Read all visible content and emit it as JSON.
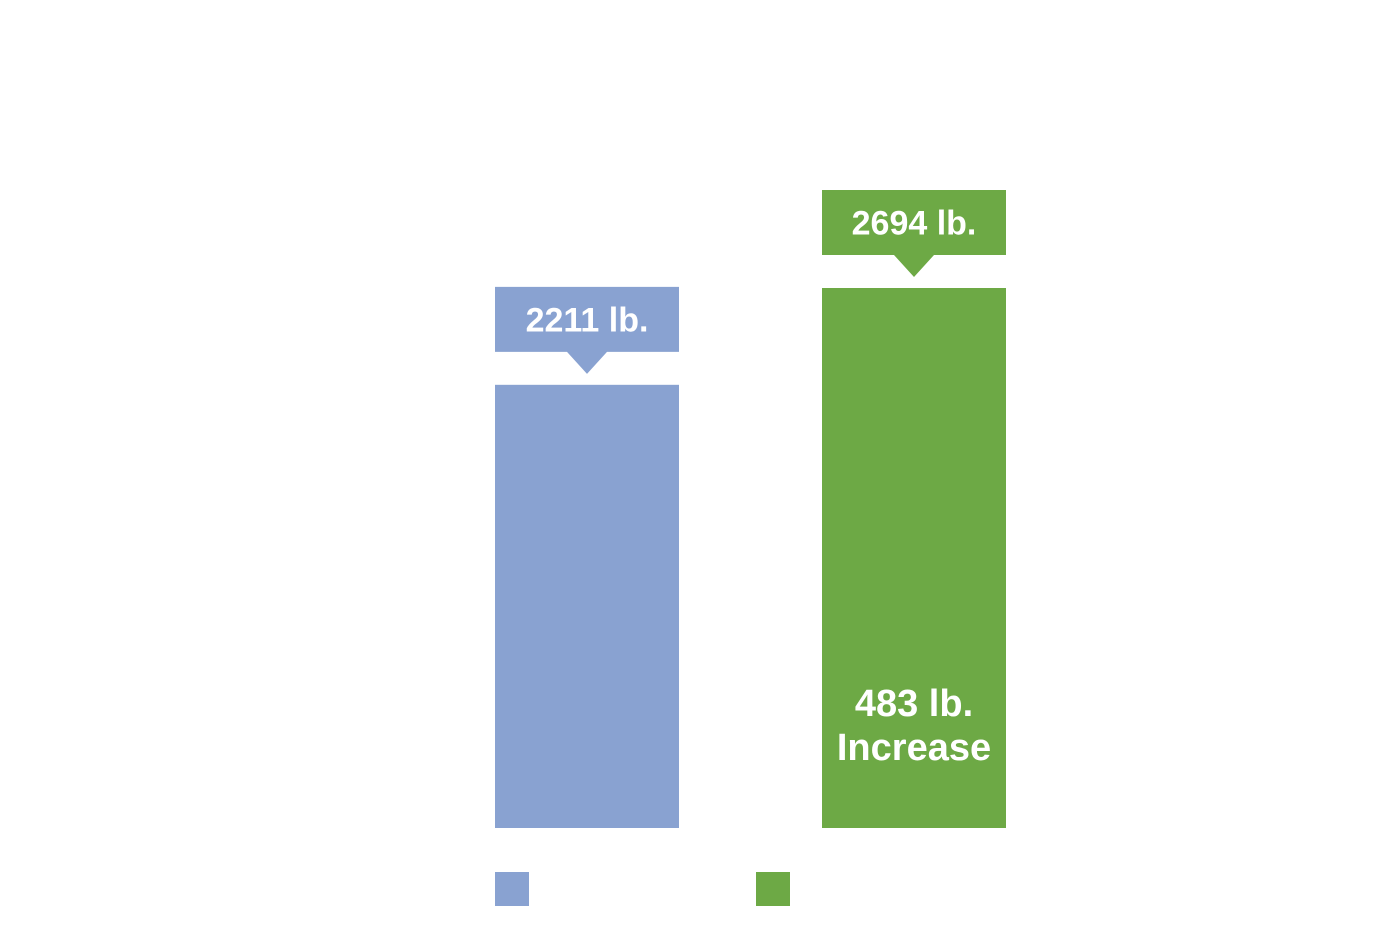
{
  "chart_data": {
    "type": "bar",
    "title": "",
    "xlabel": "",
    "ylabel": "",
    "categories": [
      "",
      ""
    ],
    "values": [
      2211,
      2694
    ],
    "value_labels": [
      "2211 lb.",
      "2694 lb."
    ],
    "colors": [
      "#89A2D1",
      "#6DA945"
    ],
    "annotation": {
      "bar_index": 1,
      "lines": [
        "483 lb.",
        "Increase"
      ],
      "color": "#ffffff"
    },
    "legend": {
      "placement": "bottom",
      "entries": [
        {
          "label": "",
          "color": "#89A2D1"
        },
        {
          "label": "",
          "color": "#6DA945"
        }
      ]
    },
    "ylim": [
      0,
      2694
    ],
    "grid": false
  }
}
